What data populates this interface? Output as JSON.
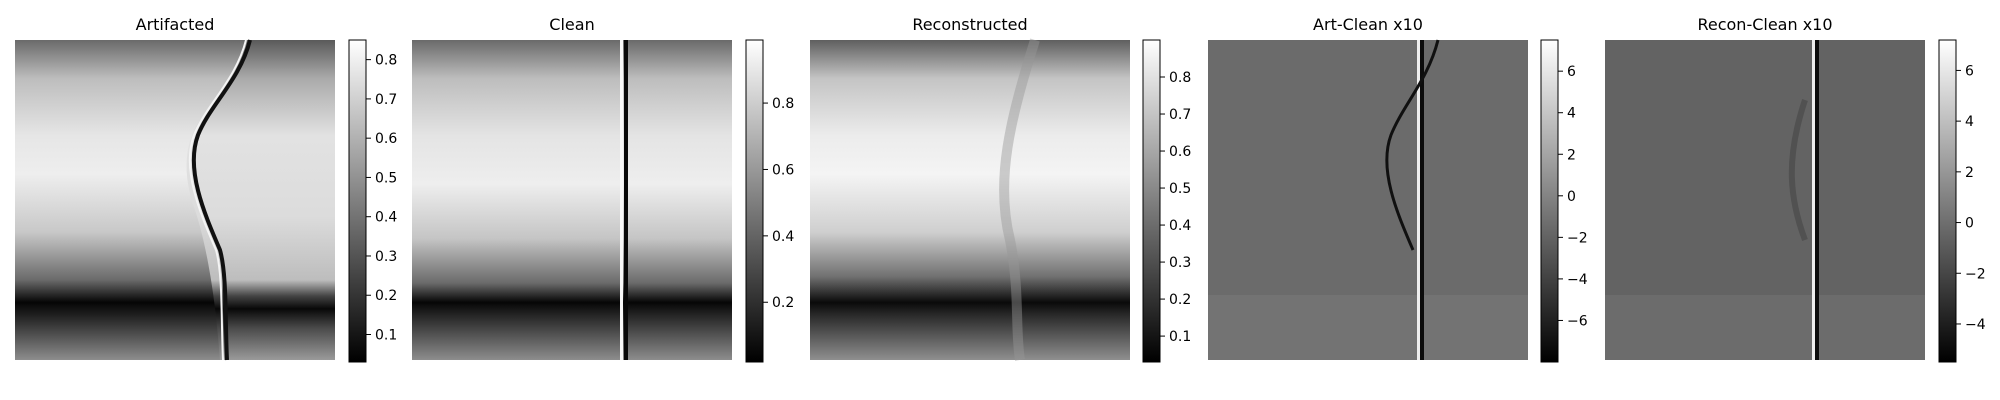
{
  "figure": {
    "panel_count": 5,
    "colormap": "gray"
  },
  "chart_data": [
    {
      "type": "heatmap",
      "title": "Artifacted",
      "colorbar": {
        "range": [
          0.03,
          0.85
        ],
        "ticks": [
          0.1,
          0.2,
          0.3,
          0.4,
          0.5,
          0.6,
          0.7,
          0.8
        ],
        "tick_labels": [
          "0.1",
          "0.2",
          "0.3",
          "0.4",
          "0.5",
          "0.6",
          "0.7",
          "0.8"
        ]
      },
      "axes_visible": false
    },
    {
      "type": "heatmap",
      "title": "Clean",
      "colorbar": {
        "range": [
          0.02,
          0.99
        ],
        "ticks": [
          0.2,
          0.4,
          0.6,
          0.8
        ],
        "tick_labels": [
          "0.2",
          "0.4",
          "0.6",
          "0.8"
        ]
      },
      "axes_visible": false
    },
    {
      "type": "heatmap",
      "title": "Reconstructed",
      "colorbar": {
        "range": [
          0.03,
          0.9
        ],
        "ticks": [
          0.1,
          0.2,
          0.3,
          0.4,
          0.5,
          0.6,
          0.7,
          0.8
        ],
        "tick_labels": [
          "0.1",
          "0.2",
          "0.3",
          "0.4",
          "0.5",
          "0.6",
          "0.7",
          "0.8"
        ]
      },
      "axes_visible": false
    },
    {
      "type": "heatmap",
      "title": "Art-Clean x10",
      "colorbar": {
        "range": [
          -8.0,
          7.5
        ],
        "ticks": [
          -6,
          -4,
          -2,
          0,
          2,
          4,
          6
        ],
        "tick_labels": [
          "−6",
          "−4",
          "−2",
          "0",
          "2",
          "4",
          "6"
        ]
      },
      "axes_visible": false
    },
    {
      "type": "heatmap",
      "title": "Recon-Clean x10",
      "colorbar": {
        "range": [
          -5.5,
          7.2
        ],
        "ticks": [
          -4,
          -2,
          0,
          2,
          4,
          6
        ],
        "tick_labels": [
          "−4",
          "−2",
          "0",
          "2",
          "4",
          "6"
        ]
      },
      "axes_visible": false
    }
  ]
}
